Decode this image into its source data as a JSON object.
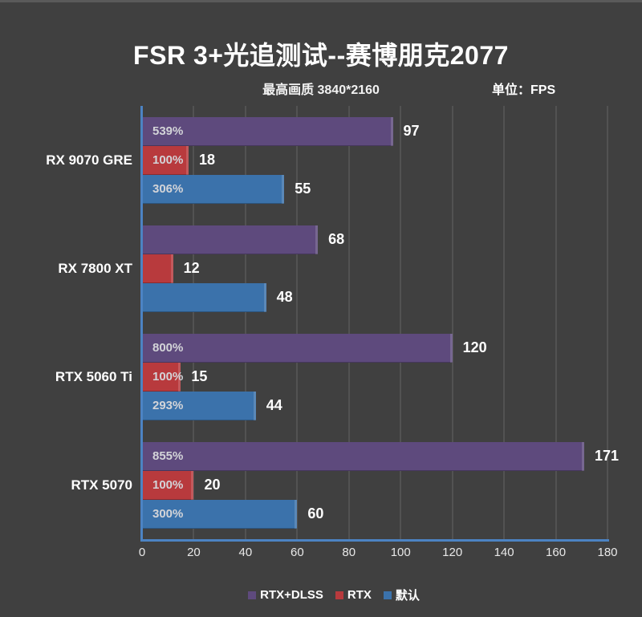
{
  "page": {
    "title": "FSR 3+光追测试--赛博朋克2077",
    "subtitle": "最高画质 3840*2160",
    "unit_label": "单位：FPS"
  },
  "colors": {
    "background": "#404040",
    "bar_purple": "#5e4a7d",
    "bar_red": "#b83a3d",
    "bar_blue": "#3b72ae",
    "axis_line": "#4c83c3",
    "gridline": "#525252",
    "percent_text": "#d3d4d8",
    "value_text": "#ffffff"
  },
  "chart_data": {
    "type": "bar",
    "orientation": "horizontal",
    "title": "FSR 3+光追测试--赛博朋克2077",
    "subtitle": "最高画质 3840*2160",
    "unit": "FPS",
    "categories": [
      "RX 9070 GRE",
      "RX 7800 XT",
      "RTX 5060 Ti",
      "RTX 5070"
    ],
    "series": [
      {
        "name": "RTX+DLSS",
        "color": "#5e4a7d",
        "values": [
          97,
          68,
          120,
          171
        ],
        "percent_labels": [
          "539%",
          "",
          "800%",
          "855%"
        ]
      },
      {
        "name": "RTX",
        "color": "#b83a3d",
        "values": [
          18,
          12,
          15,
          20
        ],
        "percent_labels": [
          "100%",
          "",
          "100%",
          "100%"
        ]
      },
      {
        "name": "默认",
        "color": "#3b72ab",
        "values": [
          55,
          48,
          44,
          60
        ],
        "percent_labels": [
          "306%",
          "",
          "293%",
          "300%"
        ]
      }
    ],
    "xlim": [
      0,
      180
    ],
    "xticks": [
      0,
      20,
      40,
      60,
      80,
      100,
      120,
      140,
      160,
      180
    ],
    "grid": "vertical",
    "legend_position": "bottom"
  }
}
